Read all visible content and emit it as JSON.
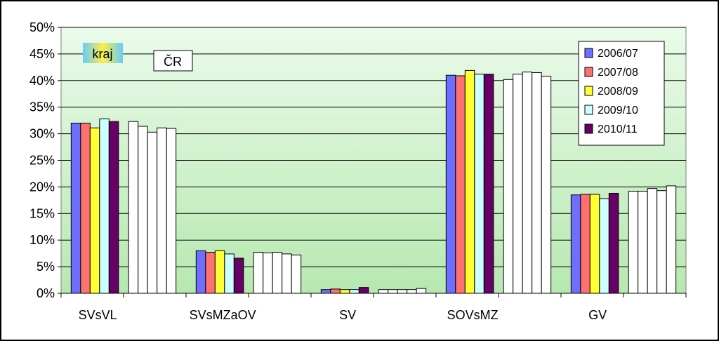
{
  "chart_data": {
    "type": "bar",
    "ylim": [
      0,
      50
    ],
    "ytick_step": 5,
    "ytick_suffix": "%",
    "categories": [
      "SVsVL",
      "SVsMZaOV",
      "SV",
      "SOVsMZ",
      "GV"
    ],
    "groups": {
      "kraj": "kraj",
      "cr": "ČR"
    },
    "series": [
      {
        "name": "2006/07",
        "color": "#6f6fff",
        "kraj": [
          32.0,
          8.0,
          0.7,
          41.0,
          18.5
        ],
        "cr": [
          32.3,
          7.7,
          0.7,
          40.2,
          19.2
        ]
      },
      {
        "name": "2007/08",
        "color": "#ff7070",
        "kraj": [
          32.0,
          7.7,
          0.8,
          40.9,
          18.6
        ],
        "cr": [
          31.4,
          7.6,
          0.7,
          41.2,
          19.2
        ]
      },
      {
        "name": "2008/09",
        "color": "#ffff33",
        "kraj": [
          31.1,
          8.0,
          0.7,
          41.9,
          18.6
        ],
        "cr": [
          30.3,
          7.7,
          0.7,
          41.6,
          19.7
        ]
      },
      {
        "name": "2009/10",
        "color": "#ccffff",
        "kraj": [
          32.8,
          7.4,
          0.7,
          41.2,
          17.8
        ],
        "cr": [
          31.1,
          7.4,
          0.7,
          41.5,
          19.3
        ]
      },
      {
        "name": "2010/11",
        "color": "#660066",
        "kraj": [
          32.3,
          6.6,
          1.1,
          41.2,
          18.8
        ],
        "cr": [
          31.0,
          7.2,
          0.9,
          40.8,
          20.2
        ]
      }
    ],
    "legend_position": "top-right",
    "grid": true
  },
  "icons": [
    "legend-swatch-icon"
  ]
}
